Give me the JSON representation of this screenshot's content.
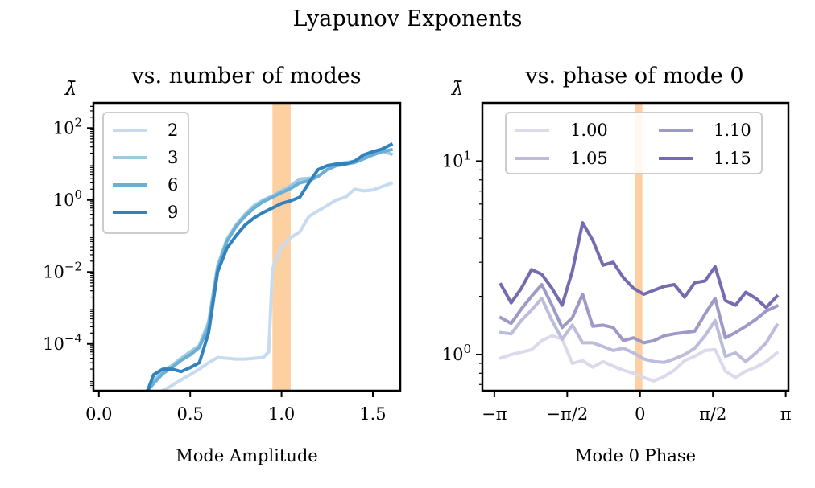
{
  "figure": {
    "suptitle": "Lyapunov Exponents"
  },
  "chart_data": [
    {
      "type": "line",
      "title": "vs. number of modes",
      "xlabel": "Mode Amplitude",
      "ylabel": "λ̄",
      "yscale": "log",
      "xlim": [
        -0.03,
        1.65
      ],
      "ylim": [
        5e-06,
        500
      ],
      "xticks": [
        0.0,
        0.5,
        1.0,
        1.5
      ],
      "xtick_labels": [
        "0.0",
        "0.5",
        "1.0",
        "1.5"
      ],
      "yticks": [
        0.0001,
        0.01,
        1,
        100
      ],
      "ytick_labels": [
        [
          "10",
          "−4"
        ],
        [
          "10",
          "−2"
        ],
        [
          "10",
          "0"
        ],
        [
          "10",
          "2"
        ]
      ],
      "highlight_band": {
        "x0": 0.95,
        "x1": 1.05,
        "color": "#fdd0a2"
      },
      "legend_position": "top-left",
      "series": [
        {
          "name": "2",
          "color": "#c6dbef",
          "x": [
            0.2,
            0.3,
            0.35,
            0.4,
            0.45,
            0.5,
            0.55,
            0.6,
            0.65,
            0.7,
            0.75,
            0.8,
            0.85,
            0.9,
            0.93,
            0.95,
            1.0,
            1.05,
            1.1,
            1.15,
            1.2,
            1.25,
            1.3,
            1.35,
            1.4,
            1.45,
            1.5,
            1.6
          ],
          "y": [
            2e-06,
            4e-06,
            5e-06,
            7e-06,
            1e-05,
            1.4e-05,
            2e-05,
            3e-05,
            4.2e-05,
            4e-05,
            3.8e-05,
            3.8e-05,
            4e-05,
            4.2e-05,
            6e-05,
            0.012,
            0.05,
            0.09,
            0.13,
            0.35,
            0.5,
            0.7,
            1.0,
            1.2,
            2.0,
            1.8,
            1.9,
            2.9
          ]
        },
        {
          "name": "3",
          "color": "#9ecae1",
          "x": [
            0.2,
            0.25,
            0.3,
            0.35,
            0.4,
            0.45,
            0.5,
            0.55,
            0.6,
            0.65,
            0.7,
            0.75,
            0.8,
            0.85,
            0.9,
            0.95,
            1.0,
            1.05,
            1.1,
            1.15,
            1.2,
            1.25,
            1.3,
            1.35,
            1.4,
            1.45,
            1.5,
            1.55,
            1.6
          ],
          "y": [
            2e-06,
            4e-06,
            9e-06,
            1.8e-05,
            2.5e-05,
            4e-05,
            6e-05,
            9e-05,
            0.0004,
            0.015,
            0.08,
            0.2,
            0.4,
            0.7,
            1.0,
            1.3,
            1.8,
            2.5,
            3.8,
            4.0,
            4.5,
            7.0,
            10,
            11,
            12,
            15,
            20,
            23,
            19
          ]
        },
        {
          "name": "6",
          "color": "#6baed6",
          "x": [
            0.2,
            0.25,
            0.3,
            0.35,
            0.4,
            0.45,
            0.5,
            0.55,
            0.6,
            0.65,
            0.7,
            0.75,
            0.8,
            0.85,
            0.9,
            0.95,
            1.0,
            1.05,
            1.1,
            1.15,
            1.2,
            1.25,
            1.3,
            1.35,
            1.4,
            1.45,
            1.5,
            1.55,
            1.6
          ],
          "y": [
            2e-06,
            4e-06,
            8e-06,
            1.5e-05,
            2.2e-05,
            3.5e-05,
            5e-05,
            8e-05,
            0.0003,
            0.012,
            0.07,
            0.18,
            0.35,
            0.6,
            0.9,
            1.2,
            1.6,
            2.1,
            3.0,
            3.4,
            4.5,
            7.0,
            9.0,
            10,
            11,
            14,
            18,
            22,
            25
          ]
        },
        {
          "name": "9",
          "color": "#3182bd",
          "x": [
            0.2,
            0.25,
            0.3,
            0.35,
            0.4,
            0.45,
            0.5,
            0.55,
            0.6,
            0.65,
            0.7,
            0.75,
            0.8,
            0.85,
            0.9,
            0.95,
            1.0,
            1.05,
            1.1,
            1.15,
            1.2,
            1.25,
            1.3,
            1.35,
            1.4,
            1.45,
            1.5,
            1.55,
            1.6
          ],
          "y": [
            2e-06,
            3e-06,
            1.4e-05,
            2e-05,
            2e-05,
            1.7e-05,
            2.2e-05,
            3e-05,
            0.0002,
            0.01,
            0.045,
            0.1,
            0.2,
            0.32,
            0.45,
            0.6,
            0.8,
            0.95,
            1.2,
            3.0,
            7.0,
            9.0,
            10,
            10,
            12,
            18,
            22,
            26,
            35
          ]
        }
      ]
    },
    {
      "type": "line",
      "title": "vs. phase of mode 0",
      "xlabel": "Mode 0 Phase",
      "ylabel": "λ̄",
      "yscale": "log",
      "xlim": [
        -3.4,
        3.2
      ],
      "ylim": [
        0.65,
        20
      ],
      "xticks": [
        -3.14159,
        -1.5708,
        0,
        1.5708,
        3.14159
      ],
      "xtick_labels": [
        "−π",
        "−π/2",
        "0",
        "π/2",
        "π"
      ],
      "yticks": [
        1,
        10
      ],
      "ytick_labels": [
        [
          "10",
          "0"
        ],
        [
          "10",
          "1"
        ]
      ],
      "highlight_band": {
        "x0": -0.1,
        "x1": 0.05,
        "color": "#fdd0a2"
      },
      "legend_position": "top-center",
      "legend_columns": 2,
      "series": [
        {
          "name": "1.00",
          "color": "#dadaeb",
          "x": [
            -3.0,
            -2.78,
            -2.56,
            -2.34,
            -2.12,
            -1.9,
            -1.68,
            -1.46,
            -1.24,
            -1.02,
            -0.8,
            -0.58,
            -0.36,
            -0.14,
            0.08,
            0.3,
            0.52,
            0.74,
            0.96,
            1.18,
            1.4,
            1.62,
            1.84,
            2.06,
            2.28,
            2.5,
            2.72,
            2.95
          ],
          "y": [
            0.96,
            1.0,
            1.03,
            1.06,
            1.18,
            1.25,
            1.2,
            0.9,
            0.93,
            0.86,
            0.92,
            0.87,
            0.83,
            0.8,
            0.76,
            0.73,
            0.77,
            0.83,
            0.93,
            0.98,
            1.05,
            1.06,
            0.82,
            0.76,
            0.82,
            0.86,
            0.92,
            1.02
          ]
        },
        {
          "name": "1.05",
          "color": "#bcbddc",
          "x": [
            -3.0,
            -2.78,
            -2.56,
            -2.34,
            -2.12,
            -1.9,
            -1.68,
            -1.46,
            -1.24,
            -1.02,
            -0.8,
            -0.58,
            -0.36,
            -0.14,
            0.08,
            0.3,
            0.52,
            0.74,
            0.96,
            1.18,
            1.4,
            1.62,
            1.84,
            2.06,
            2.28,
            2.5,
            2.72,
            2.95
          ],
          "y": [
            1.3,
            1.28,
            1.5,
            1.7,
            1.95,
            1.5,
            1.2,
            1.42,
            1.15,
            1.15,
            1.1,
            1.05,
            1.08,
            1.02,
            0.95,
            0.92,
            0.91,
            0.95,
            1.0,
            1.08,
            1.25,
            1.5,
            0.98,
            1.02,
            0.92,
            1.02,
            1.15,
            1.42
          ]
        },
        {
          "name": "1.10",
          "color": "#9e9ac8",
          "x": [
            -3.0,
            -2.78,
            -2.56,
            -2.34,
            -2.12,
            -1.9,
            -1.68,
            -1.46,
            -1.24,
            -1.02,
            -0.8,
            -0.58,
            -0.36,
            -0.14,
            0.08,
            0.3,
            0.52,
            0.74,
            0.96,
            1.18,
            1.4,
            1.62,
            1.84,
            2.06,
            2.28,
            2.5,
            2.72,
            2.95
          ],
          "y": [
            1.55,
            1.45,
            1.72,
            2.0,
            2.3,
            1.8,
            1.38,
            1.55,
            2.05,
            1.4,
            1.42,
            1.38,
            1.18,
            1.22,
            1.15,
            1.18,
            1.25,
            1.28,
            1.3,
            1.32,
            1.62,
            1.95,
            1.22,
            1.3,
            1.4,
            1.52,
            1.68,
            1.78
          ]
        },
        {
          "name": "1.15",
          "color": "#756bb1",
          "x": [
            -3.0,
            -2.78,
            -2.56,
            -2.34,
            -2.12,
            -1.9,
            -1.68,
            -1.46,
            -1.24,
            -1.02,
            -0.8,
            -0.58,
            -0.36,
            -0.14,
            0.08,
            0.3,
            0.52,
            0.74,
            0.96,
            1.18,
            1.4,
            1.62,
            1.84,
            2.06,
            2.28,
            2.5,
            2.72,
            2.95
          ],
          "y": [
            2.3,
            1.85,
            2.2,
            2.75,
            2.6,
            2.2,
            1.8,
            2.7,
            4.8,
            3.9,
            2.9,
            3.0,
            2.5,
            2.2,
            2.05,
            2.15,
            2.25,
            2.3,
            1.98,
            2.35,
            2.4,
            2.85,
            1.9,
            1.8,
            2.1,
            1.95,
            1.75,
            2.0
          ]
        }
      ]
    }
  ]
}
